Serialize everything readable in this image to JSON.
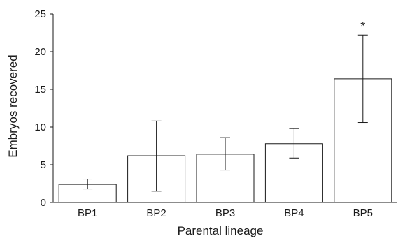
{
  "chart_data": {
    "type": "bar",
    "title": "",
    "xlabel": "Parental lineage",
    "ylabel": "Embryos recovered",
    "categories": [
      "BP1",
      "BP2",
      "BP3",
      "BP4",
      "BP5"
    ],
    "values": [
      2.4,
      6.2,
      6.4,
      7.8,
      16.4
    ],
    "error_low": [
      1.8,
      1.5,
      4.3,
      5.9,
      10.6
    ],
    "error_high": [
      3.1,
      10.8,
      8.6,
      9.8,
      22.2
    ],
    "annotations": [
      "",
      "",
      "",
      "",
      "*"
    ],
    "ylim": [
      0,
      25
    ],
    "yticks": [
      "0",
      "5",
      "10",
      "15",
      "20",
      "25"
    ],
    "grid": false,
    "legend": "none",
    "colors": {
      "bar_fill": "#ffffff",
      "stroke": "#1a1a1a"
    }
  }
}
